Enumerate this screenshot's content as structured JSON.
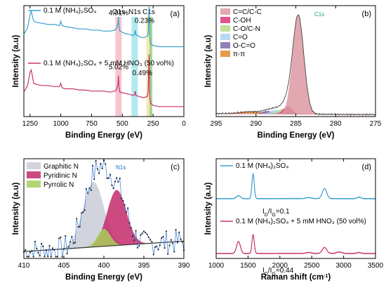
{
  "chart_data": [
    {
      "panel": "(a)",
      "type": "line",
      "xlabel": "Binding Energy (eV)",
      "ylabel": "Intensity (a.u)",
      "xlim": [
        1300,
        0
      ],
      "x_ticks": [
        1250,
        1000,
        750,
        500,
        250,
        0
      ],
      "series": [
        {
          "name": "0.1 M (NH4)2SO4",
          "color": "#3aa0d0",
          "x": [
            1300,
            1270,
            1250,
            1240,
            1230,
            1220,
            1200,
            1150,
            1100,
            1050,
            1010,
            1000,
            990,
            960,
            900,
            850,
            800,
            750,
            700,
            650,
            600,
            560,
            545,
            535,
            531,
            528,
            520,
            480,
            440,
            410,
            400,
            395,
            390,
            360,
            330,
            300,
            290,
            285,
            282,
            278,
            270,
            250,
            200,
            150,
            100,
            50,
            0
          ],
          "y": [
            0.74,
            0.8,
            0.92,
            0.95,
            0.9,
            0.86,
            0.85,
            0.84,
            0.83,
            0.83,
            0.82,
            0.86,
            0.82,
            0.81,
            0.8,
            0.79,
            0.79,
            0.78,
            0.78,
            0.77,
            0.77,
            0.78,
            0.8,
            0.84,
            0.9,
            0.82,
            0.77,
            0.75,
            0.74,
            0.73,
            0.74,
            0.78,
            0.74,
            0.72,
            0.71,
            0.72,
            0.75,
            0.92,
            1.0,
            0.72,
            0.66,
            0.64,
            0.63,
            0.63,
            0.63,
            0.63,
            0.63
          ]
        },
        {
          "name": "0.1 M (NH4)2SO4 + 5 mM HNO3 (50 vol%)",
          "color": "#c8326c",
          "x": [
            1300,
            1270,
            1250,
            1240,
            1230,
            1220,
            1200,
            1150,
            1100,
            1050,
            1010,
            1000,
            990,
            960,
            900,
            850,
            800,
            750,
            700,
            650,
            600,
            560,
            545,
            535,
            531,
            528,
            520,
            480,
            440,
            410,
            400,
            395,
            390,
            360,
            330,
            300,
            290,
            285,
            282,
            278,
            270,
            250,
            200,
            150,
            100,
            50,
            0
          ],
          "y": [
            0.22,
            0.28,
            0.4,
            0.42,
            0.36,
            0.3,
            0.29,
            0.28,
            0.28,
            0.27,
            0.27,
            0.3,
            0.26,
            0.25,
            0.25,
            0.24,
            0.24,
            0.23,
            0.23,
            0.23,
            0.22,
            0.23,
            0.25,
            0.3,
            0.37,
            0.27,
            0.22,
            0.21,
            0.2,
            0.19,
            0.2,
            0.23,
            0.19,
            0.18,
            0.17,
            0.18,
            0.22,
            0.45,
            0.56,
            0.18,
            0.12,
            0.1,
            0.09,
            0.09,
            0.09,
            0.09,
            0.09
          ]
        }
      ],
      "bands": [
        {
          "label": "O1s",
          "x": 531,
          "color": "#f2b8c2"
        },
        {
          "label": "N1s",
          "x": 400,
          "color": "#9fe3ea"
        },
        {
          "label": "C1s",
          "x": 285,
          "color": "#f3e49a"
        },
        {
          "label": "",
          "x": 285,
          "color": "#8ed08a"
        }
      ],
      "annotations": [
        "4.01%",
        "0.23%",
        "5.02%",
        "0.49%"
      ],
      "legend": [
        "0.1 M (NH₄)₂SO₄",
        "0.1 M (NH₄)₂SO₄ + 5 mM HNO₃ (50 vol%)"
      ]
    },
    {
      "panel": "(b)",
      "type": "area",
      "xlabel": "Binding Energy (eV)",
      "ylabel": "Intensity (a.u)",
      "title": "C1s",
      "xlim": [
        295,
        275
      ],
      "x_ticks": [
        295,
        290,
        285,
        280,
        275
      ],
      "components": [
        {
          "name": "C=C/C-C",
          "center": 284.7,
          "width": 0.7,
          "height": 1.0,
          "color": "#dc9aa4"
        },
        {
          "name": "C-OH",
          "center": 286.0,
          "width": 0.55,
          "height": 0.08,
          "color": "#d8367a"
        },
        {
          "name": "C-O/C-N",
          "center": 286.7,
          "width": 0.55,
          "height": 0.05,
          "color": "#b7d98b"
        },
        {
          "name": "C=O",
          "center": 287.6,
          "width": 0.55,
          "height": 0.04,
          "color": "#a9d3ef"
        },
        {
          "name": "O-C=O",
          "center": 288.6,
          "width": 0.6,
          "height": 0.03,
          "color": "#7e6aa8"
        },
        {
          "name": "π-π",
          "center": 290.6,
          "width": 1.4,
          "height": 0.022,
          "color": "#e08a2a"
        }
      ],
      "baseline": [
        0.03,
        0.02
      ],
      "ylim": [
        0,
        1.12
      ]
    },
    {
      "panel": "(c)",
      "type": "area",
      "xlabel": "Binding Energy (eV)",
      "ylabel": "Intensity (a.u)",
      "title": "N1s",
      "xlim": [
        410,
        390
      ],
      "x_ticks": [
        410,
        405,
        400,
        395,
        390
      ],
      "components": [
        {
          "name": "Graphitic N",
          "center": 401.3,
          "width": 1.3,
          "height": 0.75,
          "color": "#c9cdd6"
        },
        {
          "name": "Pyridinic N",
          "center": 398.4,
          "width": 1.2,
          "height": 0.64,
          "color": "#c42a6a"
        },
        {
          "name": "Pyrrolic N",
          "center": 400.0,
          "width": 0.8,
          "height": 0.2,
          "color": "#a8cd5a"
        }
      ],
      "baseline": [
        0.08,
        0.2
      ],
      "ylim": [
        0,
        1.15
      ]
    },
    {
      "panel": "(d)",
      "type": "line",
      "xlabel": "Raman shift (cm⁻¹)",
      "ylabel": "Intensity (a.u)",
      "xlim": [
        1000,
        3500
      ],
      "x_ticks": [
        1000,
        1500,
        2000,
        2500,
        3000,
        3500
      ],
      "series": [
        {
          "name": "0.1 M (NH4)2SO4",
          "color": "#3aa0d0",
          "baseline_y": 0.6,
          "peaks": [
            {
              "x": 1350,
              "w": 30,
              "h": 0.03
            },
            {
              "x": 1580,
              "w": 18,
              "h": 0.25
            },
            {
              "x": 2450,
              "w": 40,
              "h": 0.01
            },
            {
              "x": 2700,
              "w": 35,
              "h": 0.1
            },
            {
              "x": 3240,
              "w": 30,
              "h": 0.015
            }
          ]
        },
        {
          "name": "0.1 M (NH4)2SO4 + 5 mM HNO3 (50 vol%)",
          "color": "#c8326c",
          "baseline_y": 0.05,
          "peaks": [
            {
              "x": 1350,
              "w": 30,
              "h": 0.12
            },
            {
              "x": 1580,
              "w": 18,
              "h": 0.19
            },
            {
              "x": 2450,
              "w": 40,
              "h": 0.01
            },
            {
              "x": 2700,
              "w": 35,
              "h": 0.06
            },
            {
              "x": 2930,
              "w": 40,
              "h": 0.015
            },
            {
              "x": 3240,
              "w": 30,
              "h": 0.01
            }
          ]
        }
      ],
      "ratios": [
        "0.1",
        "0.44"
      ],
      "legend": [
        "0.1 M (NH₄)₂SO₄",
        "0.1 M (NH₄)₂SO₄ + 5 mM HNO₃ (50 vol%)"
      ]
    }
  ]
}
